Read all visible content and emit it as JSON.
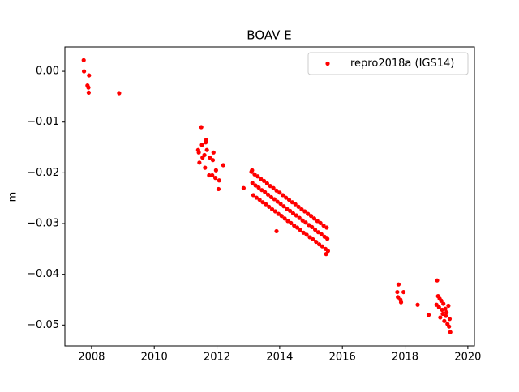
{
  "chart_data": {
    "type": "scatter",
    "title": "BOAV E",
    "y_label": "m",
    "x": [
      2007.75,
      2007.76,
      2007.87,
      2007.9,
      2007.91,
      2007.92,
      2008.88,
      2011.4,
      2011.42,
      2011.44,
      2011.5,
      2011.52,
      2011.54,
      2011.6,
      2011.62,
      2011.64,
      2011.66,
      2011.68,
      2011.75,
      2011.77,
      2011.85,
      2011.87,
      2011.89,
      2011.95,
      2011.97,
      2012.05,
      2012.07,
      2012.2,
      2012.85,
      2013.1,
      2013.13,
      2013.16,
      2013.2,
      2013.23,
      2013.26,
      2013.3,
      2013.33,
      2013.36,
      2013.4,
      2013.43,
      2013.46,
      2013.5,
      2013.53,
      2013.56,
      2013.6,
      2013.63,
      2013.66,
      2013.7,
      2013.73,
      2013.76,
      2013.8,
      2013.83,
      2013.86,
      2013.9,
      2013.93,
      2013.96,
      2014.0,
      2014.03,
      2014.06,
      2014.1,
      2014.13,
      2014.16,
      2014.2,
      2014.23,
      2014.26,
      2014.3,
      2014.33,
      2014.36,
      2014.4,
      2014.43,
      2014.46,
      2014.5,
      2014.53,
      2014.56,
      2014.6,
      2014.63,
      2014.66,
      2014.7,
      2014.73,
      2014.76,
      2014.8,
      2014.83,
      2014.86,
      2014.9,
      2014.93,
      2014.96,
      2015.0,
      2015.03,
      2015.06,
      2015.1,
      2015.13,
      2015.16,
      2015.2,
      2015.23,
      2015.26,
      2015.3,
      2015.33,
      2015.36,
      2015.4,
      2015.43,
      2015.46,
      2015.5,
      2015.52,
      2015.54,
      2013.12,
      2013.9,
      2015.48,
      2017.75,
      2017.77,
      2017.79,
      2017.85,
      2017.87,
      2017.95,
      2018.4,
      2018.75,
      2019.0,
      2019.02,
      2019.05,
      2019.08,
      2019.1,
      2019.12,
      2019.15,
      2019.18,
      2019.2,
      2019.22,
      2019.25,
      2019.28,
      2019.3,
      2019.32,
      2019.35,
      2019.38,
      2019.4,
      2019.42,
      2019.44
    ],
    "series": [
      {
        "name": "repro2018a (IGS14)",
        "color": "#ff0000",
        "values": [
          0.0022,
          0.0,
          -0.0028,
          -0.0032,
          -0.0042,
          -0.0008,
          -0.0043,
          -0.0155,
          -0.016,
          -0.018,
          -0.011,
          -0.0145,
          -0.017,
          -0.0165,
          -0.019,
          -0.014,
          -0.0135,
          -0.0155,
          -0.0205,
          -0.017,
          -0.0205,
          -0.0175,
          -0.016,
          -0.021,
          -0.0195,
          -0.0232,
          -0.0215,
          -0.0185,
          -0.023,
          -0.0198,
          -0.022,
          -0.0244,
          -0.0203,
          -0.0225,
          -0.0249,
          -0.0207,
          -0.0229,
          -0.0253,
          -0.0212,
          -0.0234,
          -0.0258,
          -0.0216,
          -0.0238,
          -0.0262,
          -0.0221,
          -0.0243,
          -0.0267,
          -0.0226,
          -0.0248,
          -0.0272,
          -0.023,
          -0.0252,
          -0.0276,
          -0.0235,
          -0.0257,
          -0.0281,
          -0.0239,
          -0.0261,
          -0.0285,
          -0.0244,
          -0.0266,
          -0.029,
          -0.0249,
          -0.0271,
          -0.0295,
          -0.0253,
          -0.0275,
          -0.0299,
          -0.0258,
          -0.028,
          -0.0304,
          -0.0262,
          -0.0284,
          -0.0308,
          -0.0267,
          -0.0289,
          -0.0313,
          -0.0272,
          -0.0294,
          -0.0318,
          -0.0276,
          -0.0298,
          -0.0322,
          -0.0281,
          -0.0303,
          -0.0327,
          -0.0285,
          -0.0307,
          -0.0331,
          -0.029,
          -0.0312,
          -0.0336,
          -0.0295,
          -0.0317,
          -0.0341,
          -0.0299,
          -0.0321,
          -0.0345,
          -0.0304,
          -0.0326,
          -0.035,
          -0.0308,
          -0.033,
          -0.0354,
          -0.0195,
          -0.0315,
          -0.036,
          -0.0435,
          -0.0445,
          -0.042,
          -0.045,
          -0.0455,
          -0.0435,
          -0.046,
          -0.048,
          -0.046,
          -0.0412,
          -0.0443,
          -0.0465,
          -0.0448,
          -0.0485,
          -0.0452,
          -0.047,
          -0.0478,
          -0.0458,
          -0.0492,
          -0.0468,
          -0.0482,
          -0.0475,
          -0.0498,
          -0.0462,
          -0.0503,
          -0.0488,
          -0.0514
        ]
      }
    ],
    "xlim": [
      2007.15,
      2020.21
    ],
    "ylim": [
      -0.0541,
      0.0048
    ],
    "xticks": [
      2008,
      2010,
      2012,
      2014,
      2016,
      2018,
      2020
    ],
    "yticks": [
      {
        "value": 0,
        "label": "0.00"
      },
      {
        "value": -0.01,
        "label": "−0.01"
      },
      {
        "value": -0.02,
        "label": "−0.02"
      },
      {
        "value": -0.03,
        "label": "−0.03"
      },
      {
        "value": -0.04,
        "label": "−0.04"
      },
      {
        "value": -0.05,
        "label": "−0.05"
      }
    ],
    "legend": "upper right",
    "grid": false
  }
}
